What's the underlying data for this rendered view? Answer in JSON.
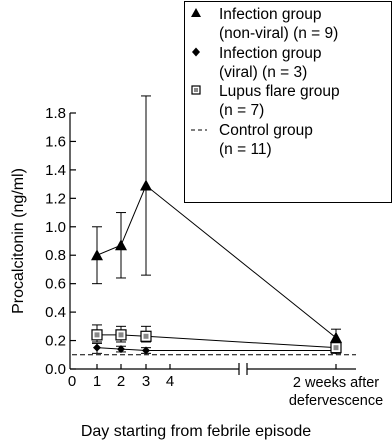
{
  "chart_data": {
    "type": "line",
    "xlabel": "Day starting from febrile episode",
    "ylabel": "Procalcitonin (ng/ml)",
    "ylim": [
      0,
      1.8
    ],
    "yticks": [
      "0.0",
      "0.2",
      "0.4",
      "0.6",
      "0.8",
      "1.0",
      "1.2",
      "1.4",
      "1.6",
      "1.8"
    ],
    "xticks": [
      "0",
      "1",
      "2",
      "3",
      "4"
    ],
    "x_break_label": [
      "2 weeks after",
      "defervescence"
    ],
    "x": [
      "1",
      "2",
      "3",
      "2 weeks after defervescence"
    ],
    "series": [
      {
        "name": "Infection group (non-viral) (n = 9)",
        "label_lines": [
          "Infection group",
          "(non-viral) (n = 9)"
        ],
        "marker": "triangle",
        "values": [
          0.8,
          0.87,
          1.29,
          0.22
        ],
        "err_low": [
          0.6,
          0.64,
          0.66,
          0.17
        ],
        "err_high": [
          1.0,
          1.1,
          1.92,
          0.28
        ]
      },
      {
        "name": "Infection group (viral) (n = 3)",
        "label_lines": [
          "Infection group",
          "(viral) (n = 3)"
        ],
        "marker": "diamond",
        "values": [
          0.15,
          0.14,
          0.13,
          0.13
        ],
        "err_low": [
          0.11,
          0.12,
          0.11,
          0.11
        ],
        "err_high": [
          0.18,
          0.16,
          0.15,
          0.15
        ]
      },
      {
        "name": "Lupus flare group (n = 7)",
        "label_lines": [
          "Lupus flare group",
          "(n = 7)"
        ],
        "marker": "square",
        "values": [
          0.24,
          0.24,
          0.23,
          0.15
        ],
        "err_low": [
          0.19,
          0.19,
          0.19,
          0.12
        ],
        "err_high": [
          0.31,
          0.3,
          0.3,
          0.18
        ]
      },
      {
        "name": "Control group (n = 11)",
        "label_lines": [
          "Control group",
          "(n = 11)"
        ],
        "marker": "dashed",
        "values": [
          0.1,
          0.1,
          0.1,
          0.1
        ]
      }
    ],
    "legend_position": "top-right",
    "grid": false
  }
}
